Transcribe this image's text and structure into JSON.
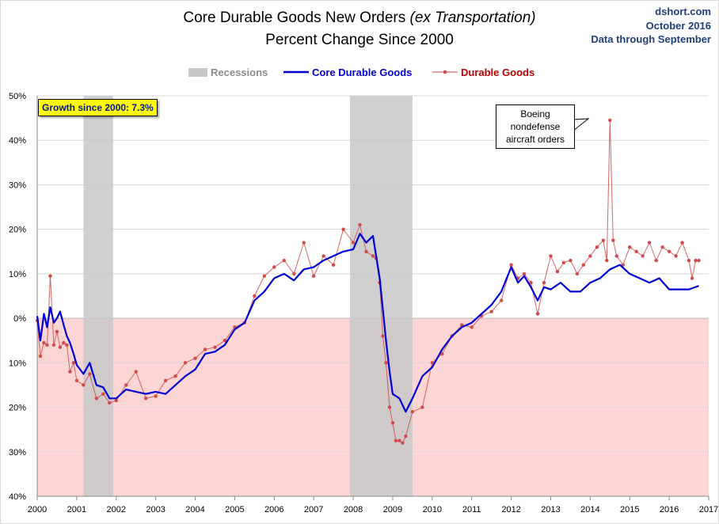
{
  "header": {
    "title_main": "Core Durable Goods New Orders",
    "title_italic": "(ex Transportation)",
    "subtitle": "Percent Change Since 2000",
    "source_site": "dshort.com",
    "source_date": "October 2016",
    "source_note": "Data through September"
  },
  "legend": {
    "recessions": "Recessions",
    "core": "Core Durable Goods",
    "durable": "Durable Goods"
  },
  "annotations": {
    "growth": "Growth since 2000: 7.3%",
    "boeing_lines": [
      "Boeing",
      "nondefense",
      "aircraft orders"
    ]
  },
  "colors": {
    "core": "#0000d6",
    "durable": "#d24a4a",
    "recession": "#c8c8c8",
    "negative_zone": "#fcd5d5",
    "grid": "#d9d9d9"
  },
  "chart_data": {
    "type": "line",
    "title": "Core Durable Goods New Orders (ex Transportation) Percent Change Since 2000",
    "xlabel": "",
    "ylabel": "",
    "xlim": [
      2000,
      2017
    ],
    "ylim": [
      -40,
      50
    ],
    "grid": "horizontal",
    "legend_position": "top-center",
    "x_ticks": [
      "2000",
      "2001",
      "2002",
      "2003",
      "2004",
      "2005",
      "2006",
      "2007",
      "2008",
      "2009",
      "2010",
      "2011",
      "2012",
      "2013",
      "2014",
      "2015",
      "2016",
      "2017"
    ],
    "y_ticks": [
      50,
      40,
      30,
      20,
      10,
      0,
      -10,
      -20,
      -30,
      -40
    ],
    "y_tick_labels": [
      "50%",
      "40%",
      "30%",
      "20%",
      "10%",
      "0%",
      "10%",
      "20%",
      "30%",
      "40%"
    ],
    "recessions": [
      [
        2001.17,
        2001.92
      ],
      [
        2007.92,
        2009.5
      ]
    ],
    "series": [
      {
        "name": "Core Durable Goods",
        "x": [
          2000.0,
          2000.08,
          2000.17,
          2000.25,
          2000.33,
          2000.42,
          2000.5,
          2000.58,
          2000.67,
          2000.75,
          2000.83,
          2000.92,
          2001.0,
          2001.17,
          2001.33,
          2001.5,
          2001.67,
          2001.83,
          2002.0,
          2002.25,
          2002.5,
          2002.75,
          2003.0,
          2003.25,
          2003.5,
          2003.75,
          2004.0,
          2004.25,
          2004.5,
          2004.75,
          2005.0,
          2005.25,
          2005.5,
          2005.75,
          2006.0,
          2006.25,
          2006.5,
          2006.75,
          2007.0,
          2007.25,
          2007.5,
          2007.75,
          2008.0,
          2008.17,
          2008.33,
          2008.5,
          2008.58,
          2008.67,
          2008.75,
          2008.83,
          2008.92,
          2009.0,
          2009.17,
          2009.33,
          2009.5,
          2009.75,
          2010.0,
          2010.25,
          2010.5,
          2010.75,
          2011.0,
          2011.25,
          2011.5,
          2011.75,
          2012.0,
          2012.17,
          2012.33,
          2012.5,
          2012.67,
          2012.83,
          2013.0,
          2013.25,
          2013.5,
          2013.75,
          2014.0,
          2014.25,
          2014.5,
          2014.75,
          2015.0,
          2015.25,
          2015.5,
          2015.75,
          2016.0,
          2016.25,
          2016.5,
          2016.75
        ],
        "values": [
          0.5,
          -5.0,
          1.0,
          -2.0,
          2.5,
          -1.0,
          0.0,
          1.5,
          -1.5,
          -4.0,
          -5.5,
          -8.0,
          -10.5,
          -12.5,
          -10.0,
          -15.0,
          -15.5,
          -18.0,
          -18.0,
          -16.0,
          -16.5,
          -17.0,
          -16.5,
          -17.0,
          -15.0,
          -13.0,
          -11.5,
          -8.0,
          -7.5,
          -6.0,
          -2.5,
          -1.0,
          4.0,
          6.0,
          9.0,
          10.0,
          8.5,
          11.0,
          11.5,
          13.0,
          14.0,
          15.0,
          15.5,
          19.0,
          17.0,
          18.5,
          14.0,
          9.0,
          2.0,
          -5.0,
          -12.0,
          -17.0,
          -18.0,
          -21.0,
          -18.0,
          -13.0,
          -11.0,
          -7.0,
          -4.0,
          -2.0,
          -1.0,
          1.0,
          3.0,
          6.0,
          11.5,
          8.0,
          9.5,
          7.0,
          4.0,
          7.0,
          6.5,
          8.0,
          6.0,
          6.0,
          8.0,
          9.0,
          11.0,
          12.0,
          10.0,
          9.0,
          8.0,
          9.0,
          6.5,
          6.5,
          6.5,
          7.3
        ]
      },
      {
        "name": "Durable Goods",
        "x": [
          2000.0,
          2000.08,
          2000.17,
          2000.25,
          2000.33,
          2000.42,
          2000.5,
          2000.58,
          2000.67,
          2000.75,
          2000.83,
          2000.92,
          2001.0,
          2001.17,
          2001.33,
          2001.5,
          2001.67,
          2001.83,
          2002.0,
          2002.25,
          2002.5,
          2002.75,
          2003.0,
          2003.25,
          2003.5,
          2003.75,
          2004.0,
          2004.25,
          2004.5,
          2004.75,
          2005.0,
          2005.25,
          2005.5,
          2005.75,
          2006.0,
          2006.25,
          2006.5,
          2006.75,
          2007.0,
          2007.25,
          2007.5,
          2007.75,
          2008.0,
          2008.17,
          2008.33,
          2008.5,
          2008.58,
          2008.67,
          2008.75,
          2008.83,
          2008.92,
          2009.0,
          2009.08,
          2009.17,
          2009.25,
          2009.33,
          2009.5,
          2009.75,
          2010.0,
          2010.25,
          2010.5,
          2010.75,
          2011.0,
          2011.25,
          2011.5,
          2011.75,
          2012.0,
          2012.17,
          2012.33,
          2012.5,
          2012.67,
          2012.83,
          2013.0,
          2013.17,
          2013.33,
          2013.5,
          2013.67,
          2013.83,
          2014.0,
          2014.17,
          2014.33,
          2014.42,
          2014.5,
          2014.58,
          2014.67,
          2014.83,
          2015.0,
          2015.17,
          2015.33,
          2015.5,
          2015.67,
          2015.83,
          2016.0,
          2016.17,
          2016.33,
          2016.5,
          2016.58,
          2016.67,
          2016.75
        ],
        "values": [
          -0.5,
          -8.5,
          -5.5,
          -6.0,
          9.5,
          -6.0,
          -3.0,
          -6.5,
          -5.5,
          -6.0,
          -12.0,
          -10.0,
          -14.0,
          -15.0,
          -12.5,
          -18.0,
          -17.0,
          -19.0,
          -18.5,
          -15.0,
          -12.0,
          -18.0,
          -17.5,
          -14.0,
          -13.0,
          -10.0,
          -9.0,
          -7.0,
          -6.5,
          -5.0,
          -2.0,
          -1.0,
          5.0,
          9.5,
          11.5,
          13.0,
          10.0,
          17.0,
          9.5,
          14.0,
          12.0,
          20.0,
          17.0,
          21.0,
          15.0,
          14.0,
          13.5,
          8.0,
          -4.0,
          -10.0,
          -20.0,
          -23.5,
          -27.5,
          -27.5,
          -28.0,
          -26.5,
          -21.0,
          -20.0,
          -10.0,
          -8.0,
          -4.0,
          -1.5,
          -2.0,
          0.5,
          1.5,
          4.0,
          12.0,
          9.0,
          10.0,
          8.0,
          1.0,
          8.0,
          14.0,
          10.5,
          12.5,
          13.0,
          10.0,
          12.0,
          14.0,
          16.0,
          17.5,
          13.0,
          44.5,
          17.5,
          14.0,
          12.0,
          16.0,
          15.0,
          14.0,
          17.0,
          13.0,
          16.0,
          15.0,
          14.0,
          17.0,
          13.0,
          9.0,
          13.0,
          13.0
        ]
      }
    ]
  }
}
